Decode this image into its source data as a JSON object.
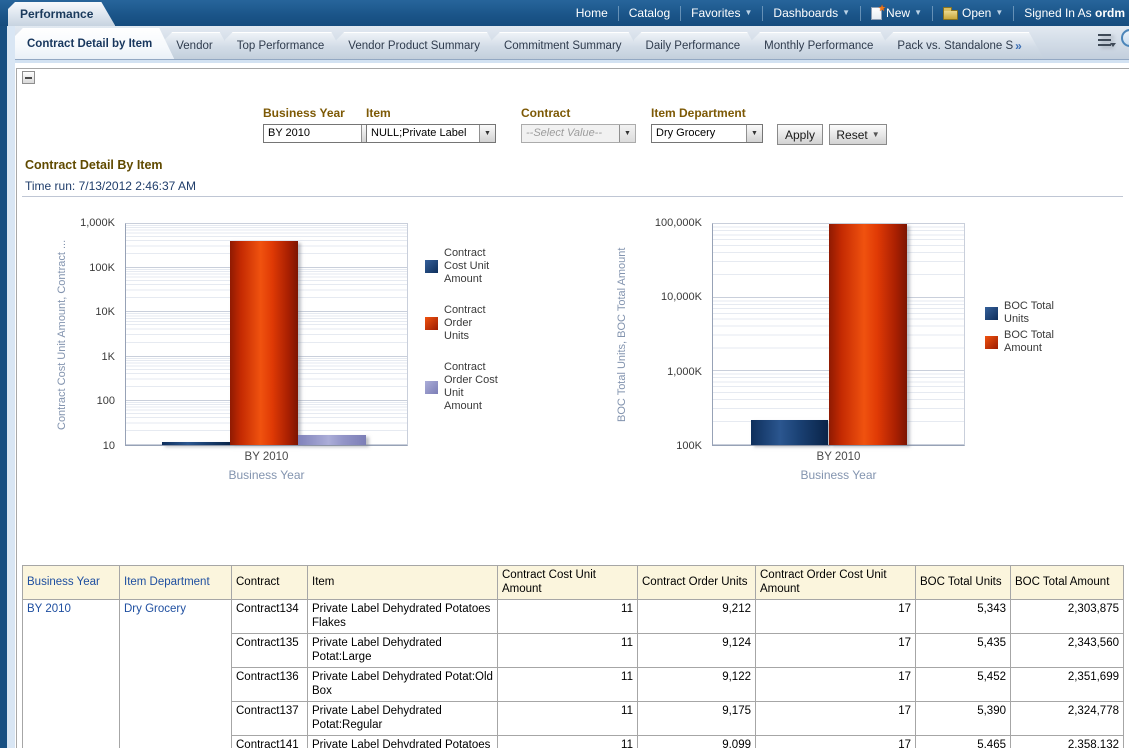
{
  "header": {
    "brand": "Performance",
    "menu": [
      {
        "label": "Home",
        "icon": null,
        "caret": false
      },
      {
        "label": "Catalog",
        "icon": null,
        "caret": false
      },
      {
        "label": "Favorites",
        "icon": null,
        "caret": true
      },
      {
        "label": "Dashboards",
        "icon": null,
        "caret": true
      },
      {
        "label": "New",
        "icon": "new-document-star-icon",
        "caret": true
      },
      {
        "label": "Open",
        "icon": "open-folder-icon",
        "caret": true
      }
    ],
    "signed_in_text": "Signed In As",
    "signed_in_user": "ordm"
  },
  "tabs": {
    "items": [
      {
        "label": "Contract Detail by Item",
        "active": true,
        "overflow_marker": ""
      },
      {
        "label": "Vendor",
        "active": false,
        "overflow_marker": ""
      },
      {
        "label": "Top Performance",
        "active": false,
        "overflow_marker": ""
      },
      {
        "label": "Vendor Product Summary",
        "active": false,
        "overflow_marker": ""
      },
      {
        "label": "Commitment Summary",
        "active": false,
        "overflow_marker": ""
      },
      {
        "label": "Daily Performance",
        "active": false,
        "overflow_marker": ""
      },
      {
        "label": "Monthly Performance",
        "active": false,
        "overflow_marker": ""
      },
      {
        "label": "Pack vs. Standalone S",
        "active": false,
        "overflow_marker": "»"
      }
    ]
  },
  "filters": {
    "items": [
      {
        "label": "Business Year",
        "value": "BY 2010",
        "disabled": false
      },
      {
        "label": "Item",
        "value": "NULL;Private Label",
        "disabled": false
      },
      {
        "label": "Contract",
        "value": "--Select Value--",
        "disabled": true
      },
      {
        "label": "Item Department",
        "value": "Dry Grocery",
        "disabled": false
      }
    ],
    "apply_label": "Apply",
    "reset_label": "Reset"
  },
  "section": {
    "title": "Contract Detail By Item",
    "time_run": "Time run: 7/13/2012 2:46:37 AM"
  },
  "chart_data": [
    {
      "type": "bar",
      "scale": "log",
      "categories": [
        "BY 2010"
      ],
      "series": [
        {
          "name": "Contract Cost Unit Amount",
          "values": [
            11
          ],
          "color_class": "navy"
        },
        {
          "name": "Contract Order Units",
          "values": [
            370000
          ],
          "color_class": "red"
        },
        {
          "name": "Contract Order Cost Unit Amount",
          "values": [
            17
          ],
          "color_class": "lavender"
        }
      ],
      "xlabel": "Business Year",
      "ylabel": "Contract Cost Unit Amount, Contract ...",
      "ylim": [
        10,
        1000000
      ],
      "ytick_labels": [
        "1,000K",
        "100K",
        "10K",
        "1K",
        "100",
        "10"
      ],
      "grid": true,
      "legend_position": "right"
    },
    {
      "type": "bar",
      "scale": "log",
      "categories": [
        "BY 2010"
      ],
      "series": [
        {
          "name": "BOC Total Units",
          "values": [
            220000
          ],
          "color_class": "navy"
        },
        {
          "name": "BOC Total Amount",
          "values": [
            95000000
          ],
          "color_class": "red"
        }
      ],
      "xlabel": "Business Year",
      "ylabel": "BOC Total Units, BOC Total Amount",
      "ylim": [
        100000,
        100000000
      ],
      "ytick_labels": [
        "100,000K",
        "10,000K",
        "1,000K",
        "100K"
      ],
      "grid": true,
      "legend_position": "right"
    }
  ],
  "table": {
    "columns": [
      {
        "label": "Business Year",
        "link": true
      },
      {
        "label": "Item Department",
        "link": true
      },
      {
        "label": "Contract",
        "link": false
      },
      {
        "label": "Item",
        "link": false
      },
      {
        "label": "Contract Cost Unit Amount",
        "link": false
      },
      {
        "label": "Contract Order Units",
        "link": false
      },
      {
        "label": "Contract Order Cost Unit Amount",
        "link": false
      },
      {
        "label": "BOC Total Units",
        "link": false
      },
      {
        "label": "BOC Total Amount",
        "link": false
      }
    ],
    "group": {
      "business_year": "BY 2010",
      "item_department": "Dry Grocery"
    },
    "rows": [
      {
        "contract": "Contract134",
        "item": "Private Label Dehydrated Potatoes Flakes",
        "contract_cost_unit_amount": "11",
        "contract_order_units": "9,212",
        "contract_order_cost_unit_amount": "17",
        "boc_total_units": "5,343",
        "boc_total_amount": "2,303,875"
      },
      {
        "contract": "Contract135",
        "item": "Private Label Dehydrated Potat:Large",
        "contract_cost_unit_amount": "11",
        "contract_order_units": "9,124",
        "contract_order_cost_unit_amount": "17",
        "boc_total_units": "5,435",
        "boc_total_amount": "2,343,560"
      },
      {
        "contract": "Contract136",
        "item": "Private Label Dehydrated Potat:Old Box",
        "contract_cost_unit_amount": "11",
        "contract_order_units": "9,122",
        "contract_order_cost_unit_amount": "17",
        "boc_total_units": "5,452",
        "boc_total_amount": "2,351,699"
      },
      {
        "contract": "Contract137",
        "item": "Private Label Dehydrated Potat:Regular",
        "contract_cost_unit_amount": "11",
        "contract_order_units": "9,175",
        "contract_order_cost_unit_amount": "17",
        "boc_total_units": "5,390",
        "boc_total_amount": "2,324,778"
      },
      {
        "contract": "Contract141",
        "item": "Private Label Dehydrated Potatoes Bud",
        "contract_cost_unit_amount": "11",
        "contract_order_units": "9,099",
        "contract_order_cost_unit_amount": "17",
        "boc_total_units": "5,465",
        "boc_total_amount": "2,358,132"
      }
    ]
  },
  "colors": {
    "header_bar": "#1B5C90",
    "filter_label": "#7D5905",
    "section_title": "#604A00",
    "link": "#1F4FA0",
    "bar_navy": "#14396B",
    "bar_red": "#D63705",
    "bar_lavender": "#9395C8"
  }
}
